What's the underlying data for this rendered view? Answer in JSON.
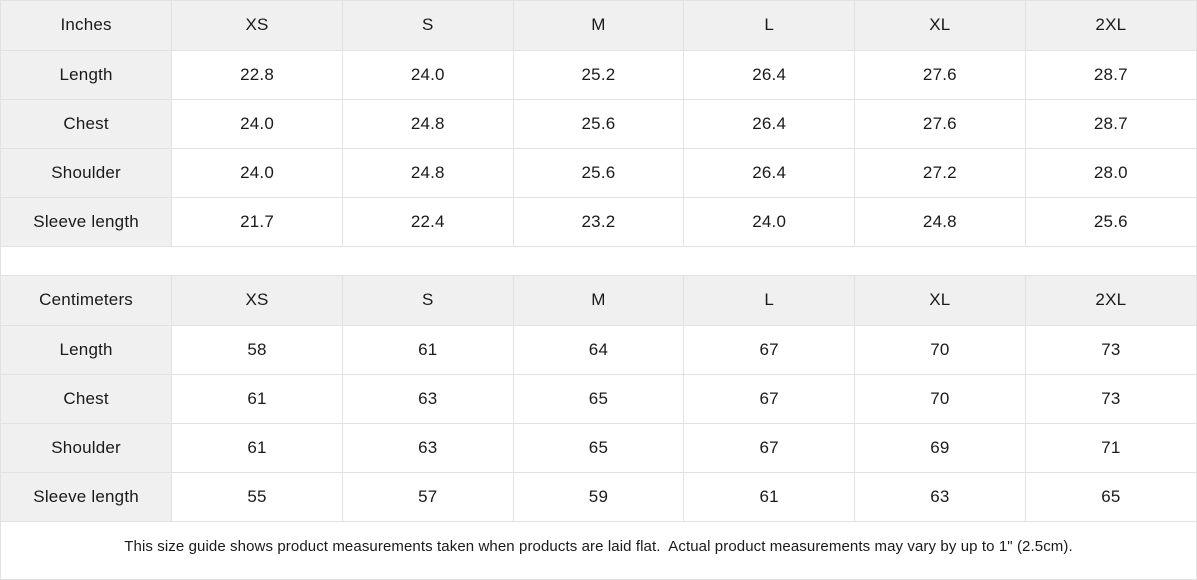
{
  "colors": {
    "header_bg": "#f0f0f0",
    "border": "#e2e2e2",
    "text": "#1a1a1a"
  },
  "tables": [
    {
      "unit_label": "Inches",
      "sizes": [
        "XS",
        "S",
        "M",
        "L",
        "XL",
        "2XL"
      ],
      "rows": [
        {
          "label": "Length",
          "values": [
            "22.8",
            "24.0",
            "25.2",
            "26.4",
            "27.6",
            "28.7"
          ]
        },
        {
          "label": "Chest",
          "values": [
            "24.0",
            "24.8",
            "25.6",
            "26.4",
            "27.6",
            "28.7"
          ]
        },
        {
          "label": "Shoulder",
          "values": [
            "24.0",
            "24.8",
            "25.6",
            "26.4",
            "27.2",
            "28.0"
          ]
        },
        {
          "label": "Sleeve length",
          "values": [
            "21.7",
            "22.4",
            "23.2",
            "24.0",
            "24.8",
            "25.6"
          ]
        }
      ]
    },
    {
      "unit_label": "Centimeters",
      "sizes": [
        "XS",
        "S",
        "M",
        "L",
        "XL",
        "2XL"
      ],
      "rows": [
        {
          "label": "Length",
          "values": [
            "58",
            "61",
            "64",
            "67",
            "70",
            "73"
          ]
        },
        {
          "label": "Chest",
          "values": [
            "61",
            "63",
            "65",
            "67",
            "70",
            "73"
          ]
        },
        {
          "label": "Shoulder",
          "values": [
            "61",
            "63",
            "65",
            "67",
            "69",
            "71"
          ]
        },
        {
          "label": "Sleeve length",
          "values": [
            "55",
            "57",
            "59",
            "61",
            "63",
            "65"
          ]
        }
      ]
    }
  ],
  "footer": {
    "note": "This size guide shows product measurements taken when products are laid flat.  Actual product measurements may vary by up to 1\" (2.5cm)."
  }
}
